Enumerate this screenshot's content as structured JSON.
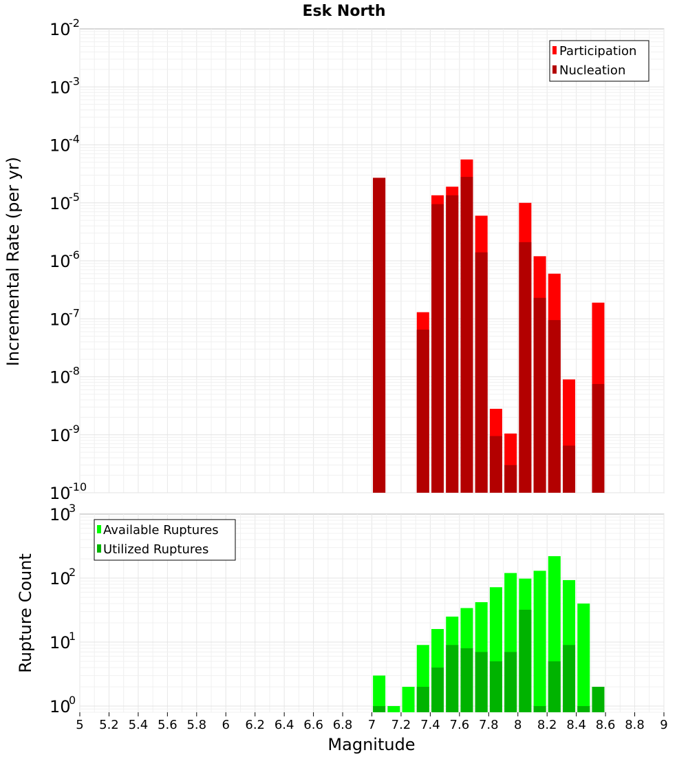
{
  "chart_data": [
    {
      "type": "bar",
      "title": "Esk North",
      "xlabel": "",
      "ylabel": "Incremental Rate (per yr)",
      "yscale": "log",
      "xlim": [
        5,
        9
      ],
      "ylim": [
        1e-10,
        0.01
      ],
      "y_tick_exponents": [
        "-10",
        "-9",
        "-8",
        "-7",
        "-6",
        "-5",
        "-4",
        "-3",
        "-2"
      ],
      "grid": true,
      "legend_position": "top-right",
      "series": [
        {
          "name": "Participation",
          "color": "#ff0000",
          "x": [
            7.05,
            7.35,
            7.45,
            7.55,
            7.65,
            7.75,
            7.85,
            7.95,
            8.05,
            8.15,
            8.25,
            8.35,
            8.55
          ],
          "values": [
            2.7e-05,
            1.3e-07,
            1.35e-05,
            1.9e-05,
            5.6e-05,
            6e-06,
            2.8e-09,
            1.05e-09,
            1e-05,
            1.2e-06,
            6e-07,
            9e-09,
            1.9e-07
          ]
        },
        {
          "name": "Nucleation",
          "color": "#b30000",
          "x": [
            7.05,
            7.35,
            7.45,
            7.55,
            7.65,
            7.75,
            7.85,
            7.95,
            8.05,
            8.15,
            8.25,
            8.35,
            8.55
          ],
          "values": [
            2.7e-05,
            6.5e-08,
            9.5e-06,
            1.35e-05,
            2.8e-05,
            1.4e-06,
            9.5e-10,
            3e-10,
            2.1e-06,
            2.3e-07,
            9.5e-08,
            6.5e-10,
            7.5e-09
          ]
        }
      ]
    },
    {
      "type": "bar",
      "title": "",
      "xlabel": "Magnitude",
      "ylabel": "Rupture Count",
      "yscale": "log",
      "xlim": [
        5,
        9
      ],
      "ylim": [
        0.8,
        1000
      ],
      "y_tick_exponents": [
        "0",
        "1",
        "2",
        "3"
      ],
      "x_ticks": [
        "5",
        "5.2",
        "5.4",
        "5.6",
        "5.8",
        "6",
        "6.2",
        "6.4",
        "6.6",
        "6.8",
        "7",
        "7.2",
        "7.4",
        "7.6",
        "7.8",
        "8",
        "8.2",
        "8.4",
        "8.6",
        "8.8",
        "9"
      ],
      "grid": true,
      "legend_position": "top-left",
      "series": [
        {
          "name": "Available Ruptures",
          "color": "#00ff00",
          "x": [
            7.05,
            7.15,
            7.25,
            7.35,
            7.45,
            7.55,
            7.65,
            7.75,
            7.85,
            7.95,
            8.05,
            8.15,
            8.25,
            8.35,
            8.45,
            8.55
          ],
          "values": [
            3,
            1,
            2,
            9,
            16,
            25,
            34,
            42,
            72,
            120,
            98,
            130,
            220,
            93,
            40,
            2
          ]
        },
        {
          "name": "Utilized Ruptures",
          "color": "#00b300",
          "x": [
            7.05,
            7.15,
            7.25,
            7.35,
            7.45,
            7.55,
            7.65,
            7.75,
            7.85,
            7.95,
            8.05,
            8.15,
            8.25,
            8.35,
            8.45,
            8.55
          ],
          "values": [
            1,
            0,
            0,
            2,
            4,
            9,
            8,
            7,
            5,
            7,
            32,
            1,
            5,
            9,
            1,
            2
          ]
        }
      ]
    }
  ]
}
